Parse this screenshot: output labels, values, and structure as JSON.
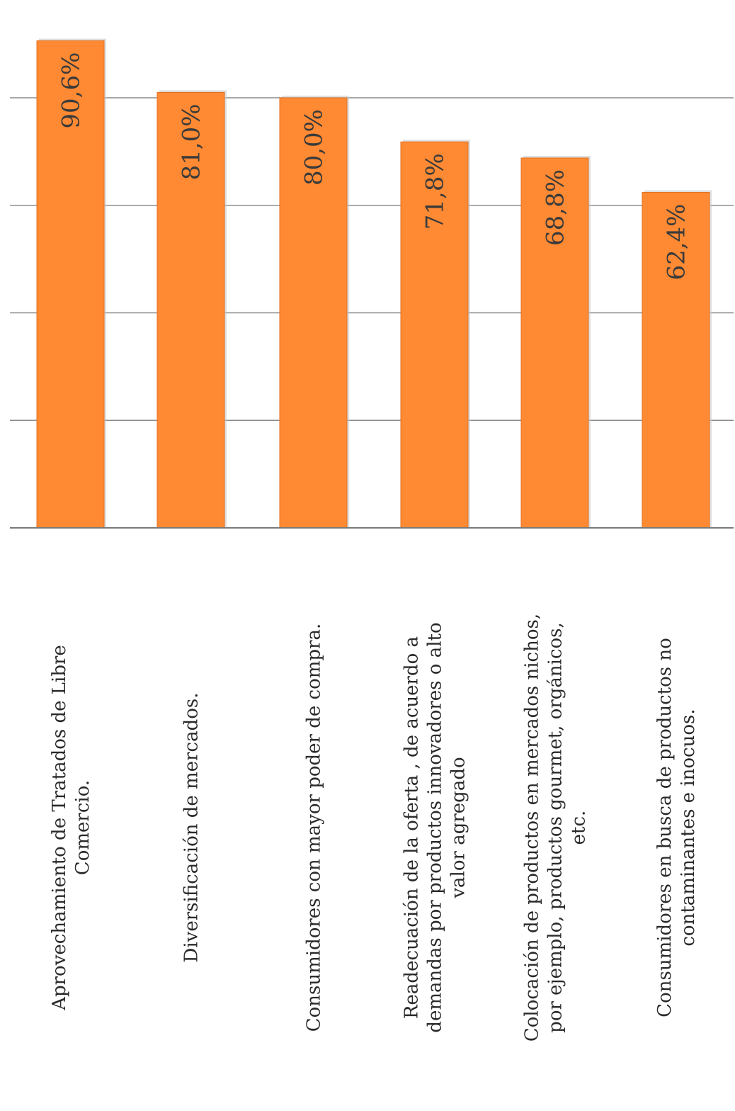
{
  "chart_data": {
    "type": "bar",
    "orientation": "vertical, rotated image (categories read along the rotated axis)",
    "categories": [
      [
        "Aprovechamiento de Tratados de Libre",
        "Comercio."
      ],
      [
        "Diversificación de mercados."
      ],
      [
        "Consumidores con mayor poder de compra."
      ],
      [
        "Readecuación de la oferta , de acuerdo a",
        "demandas por productos innovadores o alto",
        "valor agregado"
      ],
      [
        "Colocación de productos en mercados nichos,",
        "por ejemplo, productos gourmet, orgánicos,",
        "etc."
      ],
      [
        "Consumidores en busca de productos no",
        "contaminantes e inocuos."
      ]
    ],
    "values": [
      90.6,
      81.0,
      80.0,
      71.8,
      68.8,
      62.4
    ],
    "value_labels": [
      "90,6%",
      "81,0%",
      "80,0%",
      "71,8%",
      "68,8%",
      "62,4%"
    ],
    "ylim": [
      0,
      100
    ],
    "gridlines": [
      20,
      40,
      60,
      80
    ],
    "grid": true,
    "title": "",
    "xlabel": "",
    "ylabel": "",
    "colors": {
      "bar": "#FF8A33",
      "bar_edge": "#E07020",
      "bar_shadow": "#c9c9c9",
      "grid": "#8c8c8c",
      "axis": "#7a7a7a"
    }
  }
}
